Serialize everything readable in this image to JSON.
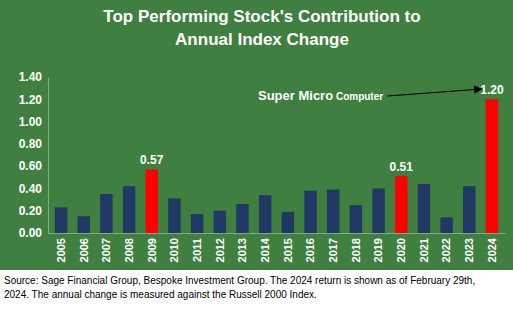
{
  "chart_data": {
    "type": "bar",
    "title": [
      "Top Performing Stock's Contribution to",
      "Annual Index Change"
    ],
    "categories": [
      "2005",
      "2006",
      "2007",
      "2008",
      "2009",
      "2010",
      "2011",
      "2012",
      "2013",
      "2014",
      "2015",
      "2016",
      "2017",
      "2018",
      "2019",
      "2020",
      "2021",
      "2022",
      "2023",
      "2024"
    ],
    "values": [
      0.23,
      0.15,
      0.35,
      0.42,
      0.57,
      0.31,
      0.17,
      0.2,
      0.26,
      0.34,
      0.19,
      0.38,
      0.39,
      0.25,
      0.4,
      0.51,
      0.44,
      0.14,
      0.42,
      1.2
    ],
    "value_labels": [
      null,
      null,
      null,
      null,
      "0.57",
      null,
      null,
      null,
      null,
      null,
      null,
      null,
      null,
      null,
      null,
      "0.51",
      null,
      null,
      null,
      "1.20"
    ],
    "colors": [
      "#1f3864",
      "#1f3864",
      "#1f3864",
      "#1f3864",
      "#ff0000",
      "#1f3864",
      "#1f3864",
      "#1f3864",
      "#1f3864",
      "#1f3864",
      "#1f3864",
      "#1f3864",
      "#1f3864",
      "#1f3864",
      "#1f3864",
      "#ff0000",
      "#1f3864",
      "#1f3864",
      "#1f3864",
      "#ff0000"
    ],
    "ylim": [
      0,
      1.4
    ],
    "yticks": [
      {
        "value": 0,
        "label": "0.00"
      },
      {
        "value": 0.2,
        "label": "0.20"
      },
      {
        "value": 0.4,
        "label": "0.40"
      },
      {
        "value": 0.6,
        "label": "0.60"
      },
      {
        "value": 0.8,
        "label": "0.80"
      },
      {
        "value": 1.0,
        "label": "1.00"
      },
      {
        "value": 1.2,
        "label": "1.20"
      },
      {
        "value": 1.4,
        "label": "1.40"
      }
    ],
    "grid": false,
    "data_labels": true,
    "annotation": [
      "Super Micro",
      "Computer"
    ],
    "source": [
      "Source: Sage Financial Group, Bespoke Investment Group. The 2024 return is shown as of February 29th,",
      "2024. The annual change is measured against the Russell 2000 Index."
    ]
  }
}
